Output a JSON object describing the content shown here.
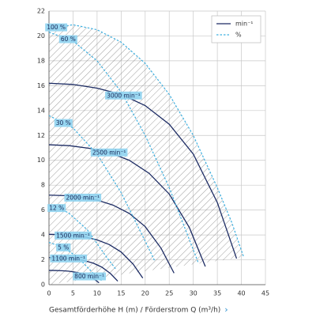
{
  "chart_data": {
    "type": "line",
    "xlabel": "Gesamtförderhöhe H (m) / Förderstrom Q (m³/h)",
    "xlabel_arrow": "›",
    "xlim": [
      0,
      45
    ],
    "xticks": [
      0,
      5,
      10,
      15,
      20,
      25,
      30,
      35,
      40,
      45
    ],
    "ylim": [
      0,
      22
    ],
    "yticks": [
      0,
      2,
      4,
      6,
      8,
      10,
      12,
      14,
      16,
      18,
      20,
      22
    ],
    "grid": true,
    "legend_position": "upper right",
    "legend": [
      {
        "name": "min⁻¹",
        "color": "#1c2b63",
        "style": "solid"
      },
      {
        "name": "%",
        "color": "#3fb0e0",
        "style": "dashed"
      }
    ],
    "series": [
      {
        "name": "3000 min⁻¹",
        "color": "#1c2b63",
        "style": "solid",
        "x": [
          0,
          5,
          10,
          15,
          20,
          25,
          30,
          35,
          39
        ],
        "values": [
          16.2,
          16.1,
          15.8,
          15.3,
          14.4,
          12.9,
          10.5,
          6.6,
          2.1
        ]
      },
      {
        "name": "2500 min⁻¹",
        "color": "#1c2b63",
        "style": "solid",
        "x": [
          0,
          4.2,
          8.3,
          12.5,
          16.7,
          20.8,
          25,
          29.2,
          32.5
        ],
        "values": [
          11.25,
          11.18,
          10.97,
          10.63,
          10,
          8.96,
          7.29,
          4.58,
          1.46
        ]
      },
      {
        "name": "2000 min⁻¹",
        "color": "#1c2b63",
        "style": "solid",
        "x": [
          0,
          3.3,
          6.7,
          10,
          13.3,
          16.7,
          20,
          23.3,
          26
        ],
        "values": [
          7.2,
          7.16,
          7.02,
          6.8,
          6.4,
          5.73,
          4.67,
          2.93,
          0.93
        ]
      },
      {
        "name": "1500 min⁻¹",
        "color": "#1c2b63",
        "style": "solid",
        "x": [
          0,
          2.5,
          5,
          7.5,
          10,
          12.5,
          15,
          17.5,
          19.5
        ],
        "values": [
          4.05,
          4.03,
          3.95,
          3.83,
          3.6,
          3.23,
          2.63,
          1.65,
          0.53
        ]
      },
      {
        "name": "1100 min⁻¹",
        "color": "#1c2b63",
        "style": "solid",
        "x": [
          0,
          1.8,
          3.7,
          5.5,
          7.3,
          9.2,
          11,
          12.8,
          14.3
        ],
        "values": [
          2.18,
          2.16,
          2.12,
          2.06,
          1.94,
          1.73,
          1.41,
          0.89,
          0.28
        ]
      },
      {
        "name": "800 min⁻¹",
        "color": "#1c2b63",
        "style": "solid",
        "x": [
          0,
          1.3,
          2.7,
          4,
          5.3,
          6.7,
          8,
          9.3,
          10.4
        ],
        "values": [
          1.15,
          1.14,
          1.12,
          1.09,
          1.02,
          0.92,
          0.75,
          0.47,
          0.15
        ]
      },
      {
        "name": "100 %",
        "color": "#3fb0e0",
        "style": "dashed",
        "x": [
          0,
          5,
          10,
          15,
          20,
          25,
          30,
          35,
          38,
          40.5
        ],
        "values": [
          20.6,
          20.9,
          20.5,
          19.5,
          17.8,
          15.3,
          12,
          7.8,
          5,
          2.2
        ]
      },
      {
        "name": "60 %",
        "color": "#3fb0e0",
        "style": "dashed",
        "x": [
          0,
          5,
          10,
          15,
          20,
          25,
          30,
          31
        ],
        "values": [
          20.3,
          19.6,
          18,
          15.5,
          12,
          7.8,
          2.8,
          1.8
        ]
      },
      {
        "name": "30 %",
        "color": "#3fb0e0",
        "style": "dashed",
        "x": [
          0,
          5,
          10,
          15,
          20,
          22
        ],
        "values": [
          13.6,
          12.6,
          10.5,
          7.4,
          3.5,
          1.9
        ]
      },
      {
        "name": "12 %",
        "color": "#3fb0e0",
        "style": "dashed",
        "x": [
          0,
          4,
          8,
          12,
          14
        ],
        "values": [
          6.4,
          5.8,
          4.4,
          2.2,
          1.2
        ]
      },
      {
        "name": "5 %",
        "color": "#3fb0e0",
        "style": "dashed",
        "x": [
          0,
          3,
          6,
          9,
          11
        ],
        "values": [
          3.4,
          3,
          2.2,
          1,
          0.3
        ]
      }
    ]
  }
}
